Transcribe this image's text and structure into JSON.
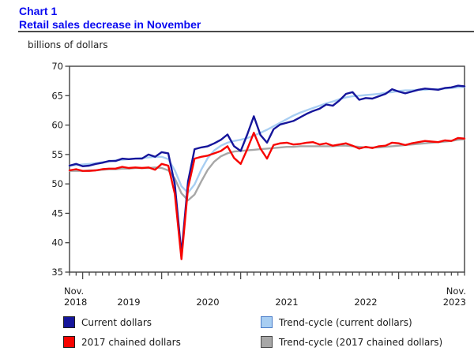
{
  "header": {
    "chart_label": "Chart 1",
    "title": "Retail sales decrease in November",
    "unit_label": "billions of dollars"
  },
  "colors": {
    "title": "#0a0af0",
    "rule": "#4a4a4a",
    "axis": "#404040",
    "text": "#1a1a1a"
  },
  "chart_data": {
    "type": "line",
    "title": "Retail sales decrease in November",
    "ylabel": "billions of dollars",
    "xlabel": "",
    "grid": false,
    "legend_position": "bottom",
    "ylim": [
      35,
      70
    ],
    "yticks": [
      70,
      65,
      60,
      55,
      50,
      45,
      40,
      35
    ],
    "x_start": "Nov 2018",
    "x_end": "Nov 2023",
    "x_axis_labels": {
      "left_month": "Nov.",
      "left_year": "2018",
      "years": [
        "2019",
        "2020",
        "2021",
        "2022"
      ],
      "right_month": "Nov.",
      "right_year": "2023"
    },
    "series": [
      {
        "name": "Current dollars",
        "color": "#15159B",
        "values": [
          53.1,
          53.4,
          53.0,
          53.1,
          53.4,
          53.6,
          53.9,
          53.9,
          54.3,
          54.2,
          54.3,
          54.3,
          55.0,
          54.6,
          55.4,
          55.2,
          49.9,
          38.1,
          50.4,
          55.9,
          56.2,
          56.4,
          56.9,
          57.5,
          58.4,
          56.4,
          55.6,
          58.4,
          61.5,
          58.3,
          57.0,
          59.3,
          60.1,
          60.4,
          60.7,
          61.3,
          61.9,
          62.4,
          62.8,
          63.5,
          63.3,
          64.2,
          65.3,
          65.6,
          64.3,
          64.6,
          64.5,
          64.9,
          65.3,
          66.1,
          65.7,
          65.4,
          65.7,
          66.0,
          66.2,
          66.1,
          66.0,
          66.3,
          66.4,
          66.7,
          66.6
        ]
      },
      {
        "name": "2017 chained dollars",
        "color": "#F70400",
        "values": [
          52.3,
          52.5,
          52.2,
          52.2,
          52.3,
          52.5,
          52.6,
          52.6,
          52.9,
          52.7,
          52.8,
          52.7,
          52.8,
          52.4,
          53.4,
          53.1,
          48.3,
          37.2,
          49.3,
          54.3,
          54.6,
          54.8,
          55.2,
          55.6,
          56.4,
          54.4,
          53.4,
          55.9,
          58.7,
          56.0,
          54.3,
          56.6,
          56.9,
          57.0,
          56.7,
          56.8,
          57.0,
          57.1,
          56.7,
          56.9,
          56.5,
          56.7,
          56.9,
          56.5,
          56.0,
          56.3,
          56.1,
          56.4,
          56.5,
          57.0,
          56.9,
          56.6,
          56.9,
          57.1,
          57.3,
          57.2,
          57.1,
          57.4,
          57.3,
          57.8,
          57.7
        ]
      },
      {
        "name": "Trend-cycle (current dollars)",
        "color": "#A8CEF2",
        "values": [
          53.1,
          53.2,
          53.3,
          53.4,
          53.5,
          53.7,
          53.8,
          54.0,
          54.1,
          54.2,
          54.3,
          54.4,
          54.5,
          54.6,
          54.6,
          54.2,
          52.3,
          49.6,
          48.5,
          49.9,
          52.4,
          54.4,
          55.7,
          56.5,
          57.0,
          57.3,
          57.5,
          57.8,
          58.2,
          58.7,
          59.2,
          59.8,
          60.4,
          61.0,
          61.6,
          62.1,
          62.5,
          62.9,
          63.3,
          63.7,
          64.0,
          64.4,
          64.7,
          64.9,
          65.0,
          65.1,
          65.2,
          65.3,
          65.5,
          65.6,
          65.8,
          65.9,
          65.9,
          66.0,
          66.0,
          66.1,
          66.1,
          66.2,
          66.3,
          66.4,
          66.5
        ]
      },
      {
        "name": "Trend-cycle (2017 chained dollars)",
        "color": "#A7A7A7",
        "values": [
          52.2,
          52.2,
          52.2,
          52.3,
          52.3,
          52.4,
          52.5,
          52.5,
          52.6,
          52.6,
          52.7,
          52.7,
          52.7,
          52.8,
          52.7,
          52.3,
          50.9,
          48.4,
          47.2,
          48.2,
          50.4,
          52.4,
          53.8,
          54.7,
          55.2,
          55.5,
          55.6,
          55.7,
          55.8,
          55.9,
          56.0,
          56.1,
          56.2,
          56.3,
          56.3,
          56.4,
          56.4,
          56.4,
          56.4,
          56.4,
          56.4,
          56.5,
          56.5,
          56.4,
          56.3,
          56.2,
          56.2,
          56.2,
          56.3,
          56.4,
          56.5,
          56.6,
          56.7,
          56.8,
          56.9,
          57.0,
          57.1,
          57.2,
          57.3,
          57.5,
          57.6
        ]
      }
    ]
  },
  "legend": {
    "items": [
      {
        "label": "Current dollars",
        "fill": "#15159B",
        "border": "#1f1f1f"
      },
      {
        "label": "2017 chained dollars",
        "fill": "#F70400",
        "border": "#1f1f1f"
      },
      {
        "label": "Trend-cycle (current dollars)",
        "fill": "#A8CEF2",
        "border": "#4A7CC7"
      },
      {
        "label": "Trend-cycle (2017 chained dollars)",
        "fill": "#A7A7A7",
        "border": "#474747"
      }
    ]
  }
}
